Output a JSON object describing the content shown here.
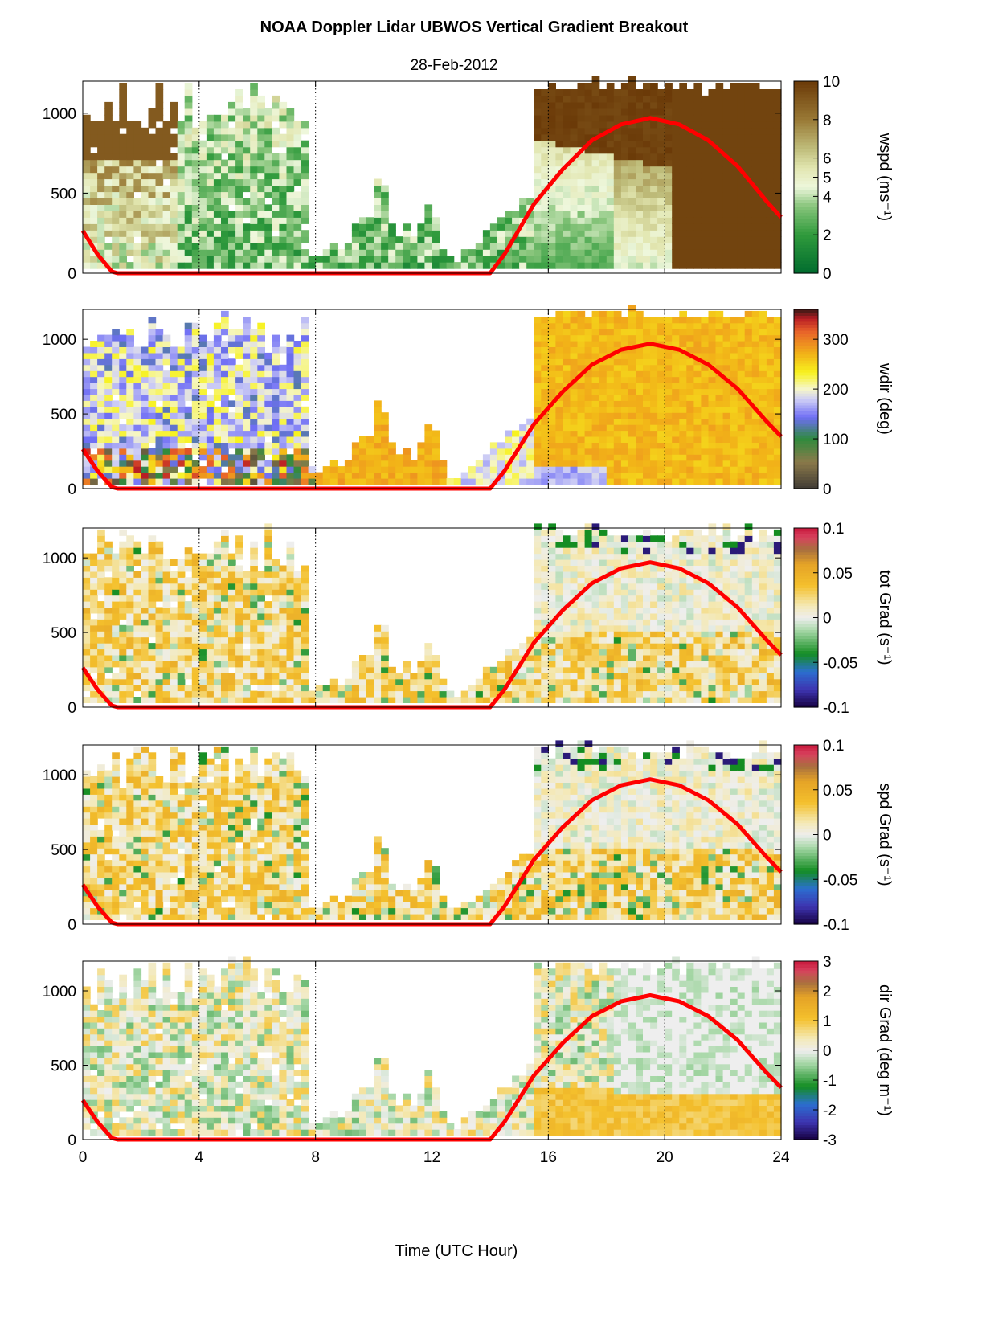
{
  "figure": {
    "title": "NOAA Doppler Lidar  UBWOS  Vertical Gradient Breakout",
    "subtitle": "28-Feb-2012",
    "xlabel": "Time (UTC Hour)"
  },
  "chart_data": [
    {
      "type": "heatmap",
      "id": "wspd",
      "colorbar_label": "wspd (ms⁻¹)",
      "colormap": "green-white-brown",
      "colorbar_ticks": [
        "0",
        "2",
        "4",
        "5",
        "6",
        "8",
        "10"
      ],
      "clim": [
        0,
        10
      ],
      "xlim": [
        0,
        24
      ],
      "xticks": [
        "0",
        "4",
        "8",
        "12",
        "16",
        "20",
        "24"
      ],
      "ylim": [
        0,
        1200
      ],
      "yticks": [
        "0",
        "500",
        "1000"
      ],
      "dotted_vlines": [
        4,
        8,
        12,
        16,
        20
      ]
    },
    {
      "type": "heatmap",
      "id": "wdir",
      "colorbar_label": "wdir (deg)",
      "colormap": "brown-green-blue-white-yellow-orange-red",
      "colorbar_ticks": [
        "0",
        "100",
        "200",
        "300"
      ],
      "clim": [
        0,
        360
      ],
      "xlim": [
        0,
        24
      ],
      "xticks": [
        "0",
        "4",
        "8",
        "12",
        "16",
        "20",
        "24"
      ],
      "ylim": [
        0,
        1200
      ],
      "yticks": [
        "0",
        "500",
        "1000"
      ],
      "dotted_vlines": [
        4,
        8,
        12,
        16,
        20
      ]
    },
    {
      "type": "heatmap",
      "id": "totgrad",
      "colorbar_label": "tot Grad (s⁻¹)",
      "colormap": "diverging-navy-green-white-orange-red",
      "colorbar_ticks": [
        "0.1",
        "0.05",
        "0",
        "-0.05",
        "-0.1"
      ],
      "clim": [
        -0.1,
        0.1
      ],
      "xlim": [
        0,
        24
      ],
      "xticks": [
        "0",
        "4",
        "8",
        "12",
        "16",
        "20",
        "24"
      ],
      "ylim": [
        0,
        1200
      ],
      "yticks": [
        "0",
        "500",
        "1000"
      ],
      "dotted_vlines": [
        4,
        8,
        12,
        16,
        20
      ]
    },
    {
      "type": "heatmap",
      "id": "spdgrad",
      "colorbar_label": "spd Grad (s⁻¹)",
      "colormap": "diverging-navy-green-white-orange-red",
      "colorbar_ticks": [
        "0.1",
        "0.05",
        "0",
        "-0.05",
        "-0.1"
      ],
      "clim": [
        -0.1,
        0.1
      ],
      "xlim": [
        0,
        24
      ],
      "xticks": [
        "0",
        "4",
        "8",
        "12",
        "16",
        "20",
        "24"
      ],
      "ylim": [
        0,
        1200
      ],
      "yticks": [
        "0",
        "500",
        "1000"
      ],
      "dotted_vlines": [
        4,
        8,
        12,
        16,
        20
      ]
    },
    {
      "type": "heatmap",
      "id": "dirgrad",
      "colorbar_label": "dir Grad (deg m⁻¹)",
      "colormap": "diverging-navy-green-white-orange-red",
      "colorbar_ticks": [
        "3",
        "2",
        "1",
        "0",
        "-1",
        "-2",
        "-3"
      ],
      "clim": [
        -3,
        3
      ],
      "xlim": [
        0,
        24
      ],
      "xticks": [
        "0",
        "4",
        "8",
        "12",
        "16",
        "20",
        "24"
      ],
      "ylim": [
        0,
        1200
      ],
      "yticks": [
        "0",
        "500",
        "1000"
      ],
      "dotted_vlines": [
        4,
        8,
        12,
        16,
        20
      ]
    }
  ],
  "overlay_curve": {
    "color": "#ff0000",
    "points": [
      [
        0,
        265
      ],
      [
        0.5,
        120
      ],
      [
        1,
        10
      ],
      [
        1.2,
        0
      ],
      [
        14,
        0
      ],
      [
        14.5,
        120
      ],
      [
        15.5,
        430
      ],
      [
        16.5,
        650
      ],
      [
        17.5,
        830
      ],
      [
        18.5,
        930
      ],
      [
        19.5,
        970
      ],
      [
        20.5,
        930
      ],
      [
        21.5,
        830
      ],
      [
        22.5,
        670
      ],
      [
        23.5,
        450
      ],
      [
        24,
        350
      ]
    ]
  }
}
